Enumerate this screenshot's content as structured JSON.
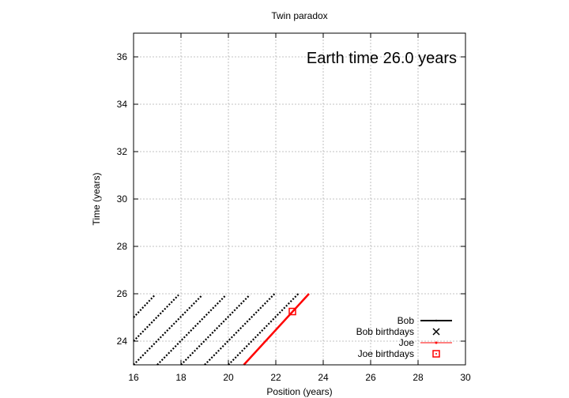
{
  "chart_data": {
    "type": "line",
    "title": "Twin paradox",
    "xlabel": "Position (years)",
    "ylabel": "Time (years)",
    "xlim": [
      16,
      30
    ],
    "ylim": [
      23,
      37
    ],
    "x_ticks": [
      16,
      18,
      20,
      22,
      24,
      26,
      28,
      30
    ],
    "y_ticks": [
      24,
      26,
      28,
      30,
      32,
      34,
      36
    ],
    "grid": true,
    "legend_position": "bottom-right",
    "annotation": "Earth time 26.0 years",
    "colors": {
      "bob": "#000000",
      "joe": "#ff0000"
    },
    "series": [
      {
        "name": "Bob",
        "style": "dotted-lines",
        "segments": [
          [
            [
              16.0,
              25.0
            ],
            [
              16.9,
              25.95
            ]
          ],
          [
            [
              16.0,
              24.0
            ],
            [
              17.9,
              25.95
            ]
          ],
          [
            [
              16.0,
              23.0
            ],
            [
              18.9,
              25.95
            ]
          ],
          [
            [
              17.0,
              23.0
            ],
            [
              19.9,
              25.95
            ]
          ],
          [
            [
              18.0,
              23.0
            ],
            [
              20.9,
              25.95
            ]
          ],
          [
            [
              19.0,
              23.0
            ],
            [
              21.95,
              26.0
            ]
          ],
          [
            [
              20.0,
              23.0
            ],
            [
              22.95,
              26.0
            ]
          ]
        ]
      },
      {
        "name": "Bob birthdays",
        "style": "x-markers",
        "points": []
      },
      {
        "name": "Joe",
        "style": "line",
        "segments": [
          [
            [
              20.65,
              23.0
            ],
            [
              23.4,
              26.0
            ]
          ]
        ]
      },
      {
        "name": "Joe birthdays",
        "style": "square-markers",
        "points": [
          [
            22.7,
            25.25
          ]
        ]
      }
    ]
  }
}
